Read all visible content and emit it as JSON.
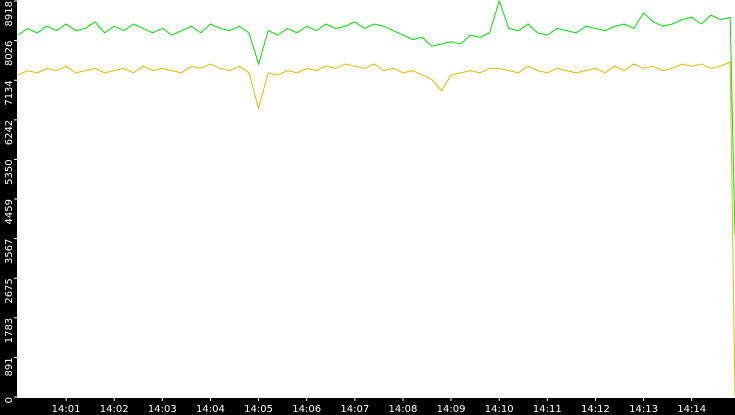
{
  "chart_data": {
    "type": "line",
    "x": [
      0,
      0.2,
      0.4,
      0.6,
      0.8,
      1,
      1.2,
      1.4,
      1.6,
      1.8,
      2,
      2.2,
      2.4,
      2.6,
      2.8,
      3,
      3.2,
      3.4,
      3.6,
      3.8,
      4,
      4.2,
      4.4,
      4.6,
      4.8,
      5,
      5.2,
      5.4,
      5.6,
      5.8,
      6,
      6.2,
      6.4,
      6.6,
      6.8,
      7,
      7.2,
      7.4,
      7.6,
      7.8,
      8,
      8.2,
      8.4,
      8.6,
      8.8,
      9,
      9.2,
      9.4,
      9.6,
      9.8,
      10,
      10.2,
      10.4,
      10.6,
      10.8,
      11,
      11.2,
      11.4,
      11.6,
      11.8,
      12,
      12.2,
      12.4,
      12.6,
      12.8,
      13,
      13.2,
      13.4,
      13.6,
      13.8,
      14,
      14.2,
      14.4,
      14.6,
      14.8,
      14.9
    ],
    "series": [
      {
        "color": "#00e000",
        "values": [
          8150,
          8300,
          8200,
          8350,
          8250,
          8400,
          8250,
          8300,
          8450,
          8200,
          8350,
          8250,
          8400,
          8300,
          8200,
          8300,
          8150,
          8250,
          8350,
          8200,
          8400,
          8300,
          8250,
          8350,
          8200,
          7500,
          8250,
          8150,
          8300,
          8200,
          8350,
          8250,
          8400,
          8300,
          8350,
          8450,
          8300,
          8400,
          8350,
          8250,
          8150,
          8050,
          8100,
          7900,
          7950,
          8000,
          7950,
          8150,
          8100,
          8200,
          8918,
          8300,
          8250,
          8400,
          8200,
          8150,
          8300,
          8250,
          8200,
          8350,
          8300,
          8250,
          8350,
          8400,
          8300,
          8650,
          8450,
          8350,
          8400,
          8500,
          8550,
          8400,
          8600,
          8500,
          8550,
          3650
        ]
      },
      {
        "color": "#e8b800",
        "values": [
          7250,
          7350,
          7300,
          7400,
          7350,
          7450,
          7300,
          7350,
          7400,
          7300,
          7350,
          7400,
          7300,
          7450,
          7350,
          7400,
          7350,
          7300,
          7450,
          7400,
          7500,
          7400,
          7350,
          7450,
          7300,
          6500,
          7300,
          7250,
          7350,
          7300,
          7400,
          7350,
          7450,
          7400,
          7500,
          7450,
          7400,
          7500,
          7350,
          7400,
          7300,
          7350,
          7250,
          7150,
          6900,
          7250,
          7300,
          7350,
          7300,
          7400,
          7400,
          7350,
          7300,
          7450,
          7350,
          7300,
          7400,
          7350,
          7300,
          7350,
          7400,
          7300,
          7450,
          7350,
          7500,
          7400,
          7450,
          7350,
          7400,
          7500,
          7450,
          7500,
          7400,
          7450,
          7550,
          0
        ]
      }
    ],
    "xlim": [
      -0.02,
      14.9
    ],
    "xticks": [
      {
        "value": 1,
        "label": "14:01"
      },
      {
        "value": 2,
        "label": "14:02"
      },
      {
        "value": 3,
        "label": "14:03"
      },
      {
        "value": 4,
        "label": "14:04"
      },
      {
        "value": 5,
        "label": "14:05"
      },
      {
        "value": 6,
        "label": "14:06"
      },
      {
        "value": 7,
        "label": "14:07"
      },
      {
        "value": 8,
        "label": "14:08"
      },
      {
        "value": 9,
        "label": "14:09"
      },
      {
        "value": 10,
        "label": "14:10"
      },
      {
        "value": 11,
        "label": "14:11"
      },
      {
        "value": 12,
        "label": "14:12"
      },
      {
        "value": 13,
        "label": "14:13"
      },
      {
        "value": 14,
        "label": "14:14"
      }
    ],
    "ylim": [
      0,
      8918
    ],
    "yticks": [
      0,
      891,
      1783,
      2675,
      3567,
      4459,
      5350,
      6242,
      7134,
      8026,
      8918
    ]
  }
}
